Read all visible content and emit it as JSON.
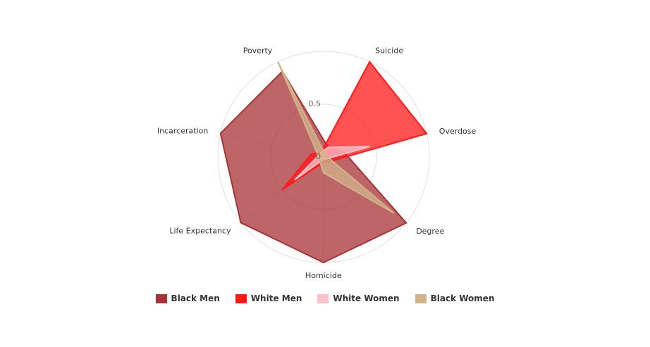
{
  "chart_data": {
    "type": "radar",
    "categories": [
      "Suicide",
      "Overdose",
      "Degree",
      "Homicide",
      "Life Expectancy",
      "Incarceration",
      "Poverty"
    ],
    "tick_labels": [
      "0",
      "0.5"
    ],
    "rlim": [
      0,
      1
    ],
    "legend_position": "bottom",
    "series": [
      {
        "name": "Black Men",
        "color": "#a83236",
        "values": [
          0.1,
          0.2,
          1.0,
          1.0,
          1.0,
          1.0,
          0.9
        ]
      },
      {
        "name": "White Men",
        "color": "#ff1a1a",
        "values": [
          1.0,
          1.0,
          0.07,
          0.05,
          0.5,
          0.12,
          0.05
        ]
      },
      {
        "name": "White Women",
        "color": "#ffc0cb",
        "values": [
          0.1,
          0.45,
          0.03,
          0.02,
          0.35,
          0.05,
          0.05
        ]
      },
      {
        "name": "Black Women",
        "color": "#d2b48c",
        "values": [
          0.03,
          0.03,
          0.85,
          0.15,
          0.05,
          0.05,
          1.0
        ]
      }
    ]
  }
}
